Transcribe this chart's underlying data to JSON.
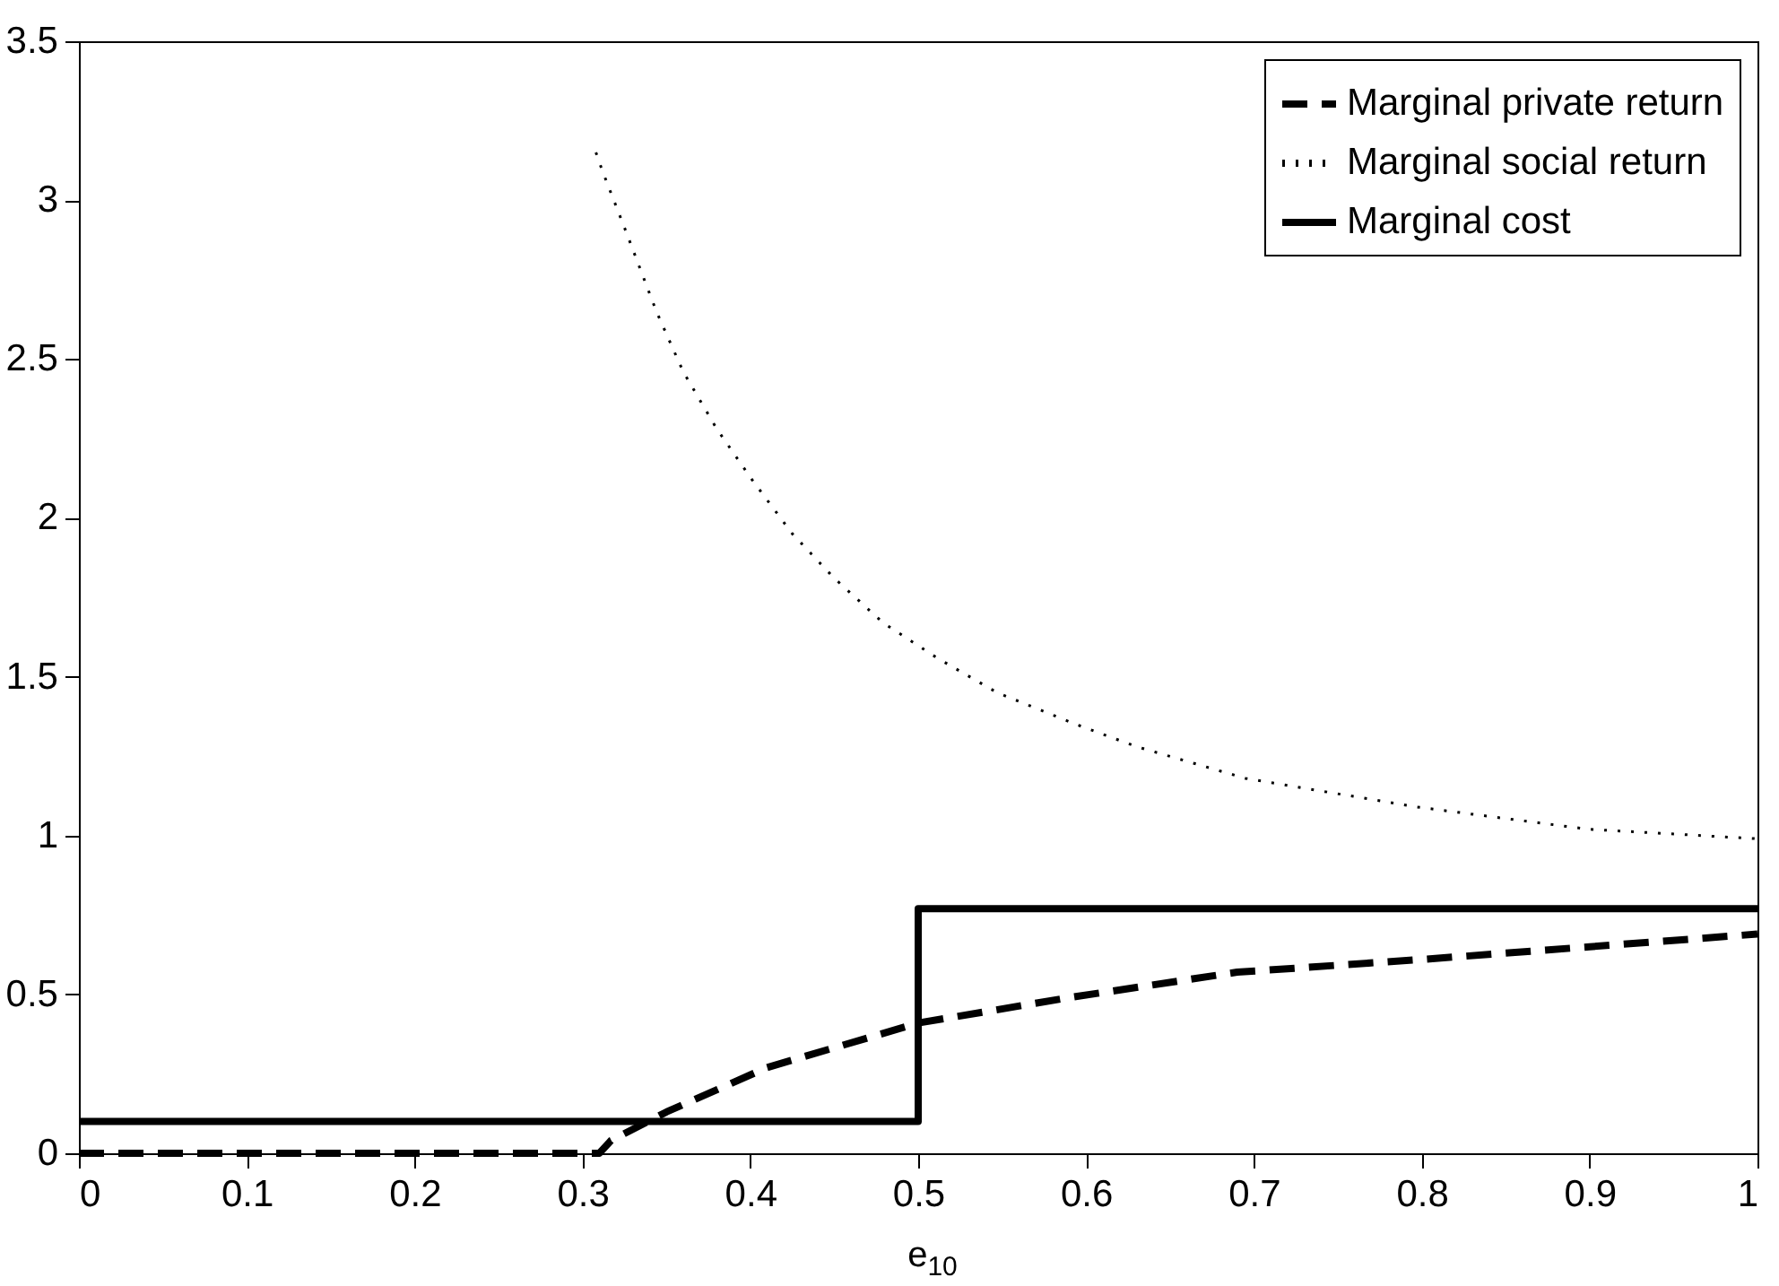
{
  "chart_data": {
    "type": "line",
    "xlabel": "e$_{10}$",
    "xlim": [
      0,
      1
    ],
    "xticks": [
      0,
      0.1,
      0.2,
      0.3,
      0.4,
      0.5,
      0.6,
      0.7,
      0.8,
      0.9,
      1
    ],
    "ylim": [
      0,
      3.5
    ],
    "yticks": [
      0,
      0.5,
      1,
      1.5,
      2,
      2.5,
      3,
      3.5
    ],
    "grid": false,
    "legend": "top right",
    "marker": "none",
    "series": [
      {
        "name": "Marginal private return",
        "color": "#000000",
        "line_style": "dashed",
        "x": [
          0,
          0.31,
          0.317,
          0.35,
          0.41,
          0.5,
          0.59,
          0.69,
          0.8,
          0.9,
          1
        ],
        "values": [
          0,
          0,
          0.04,
          0.13,
          0.27,
          0.41,
          0.49,
          0.57,
          0.61,
          0.65,
          0.69
        ]
      },
      {
        "name": "Marginal social return",
        "color": "#000000",
        "line_style": "dotted",
        "x": [
          0.308,
          0.312,
          0.326,
          0.344,
          0.36,
          0.38,
          0.401,
          0.425,
          0.45,
          0.479,
          0.511,
          0.547,
          0.594,
          0.63,
          0.695,
          0.797,
          0.899,
          1
        ],
        "values": [
          3.15,
          3.09,
          2.9,
          2.65,
          2.46,
          2.28,
          2.12,
          1.95,
          1.81,
          1.67,
          1.56,
          1.45,
          1.35,
          1.28,
          1.18,
          1.09,
          1.02,
          0.99
        ]
      },
      {
        "name": "Marginal cost",
        "color": "#000000",
        "line_style": "solid",
        "x": [
          0,
          0.5,
          0.5,
          1
        ],
        "values": [
          0.1,
          0.1,
          0.77,
          0.77
        ]
      }
    ]
  }
}
